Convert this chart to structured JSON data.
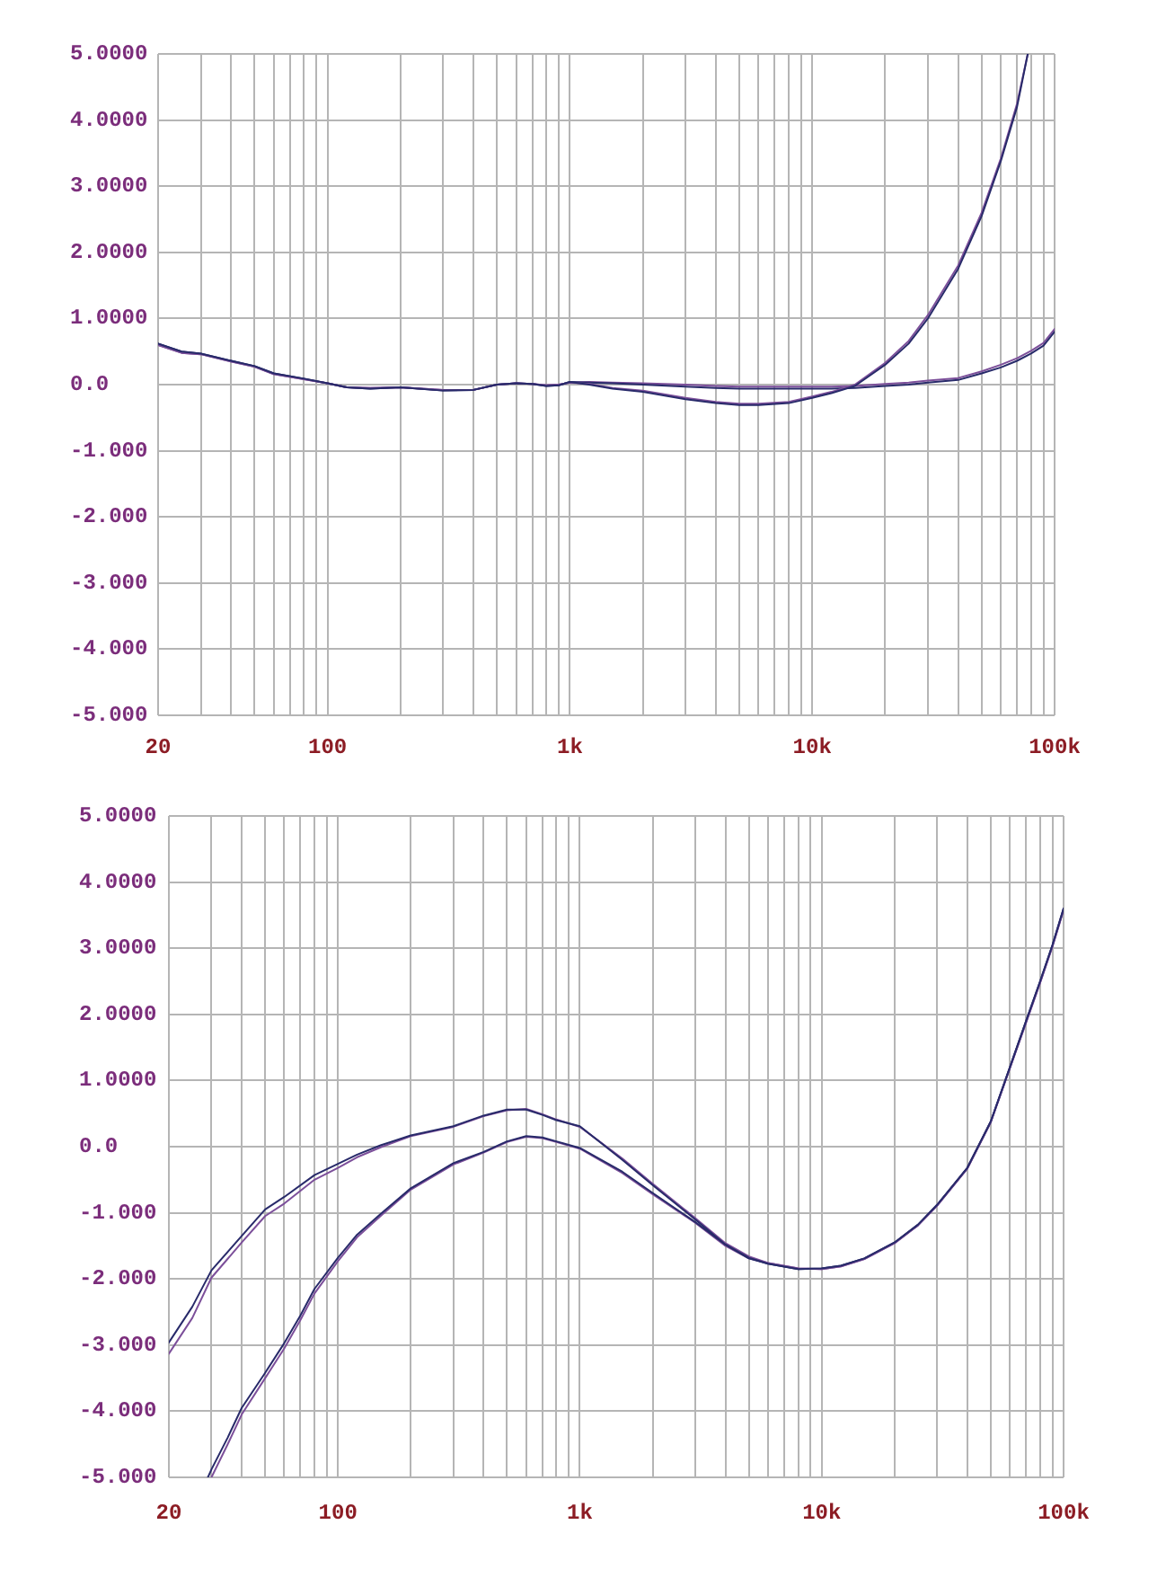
{
  "chart_data": [
    {
      "type": "line",
      "log": "x",
      "grid": true,
      "xlim": [
        20,
        100000
      ],
      "ylim": [
        -5,
        5
      ],
      "xticks": [
        {
          "value": 20,
          "label": "20"
        },
        {
          "value": 30,
          "label": null
        },
        {
          "value": 40,
          "label": null
        },
        {
          "value": 50,
          "label": null
        },
        {
          "value": 60,
          "label": null
        },
        {
          "value": 70,
          "label": null
        },
        {
          "value": 80,
          "label": null
        },
        {
          "value": 90,
          "label": null
        },
        {
          "value": 100,
          "label": "100"
        },
        {
          "value": 200,
          "label": null
        },
        {
          "value": 300,
          "label": null
        },
        {
          "value": 400,
          "label": null
        },
        {
          "value": 500,
          "label": null
        },
        {
          "value": 600,
          "label": null
        },
        {
          "value": 700,
          "label": null
        },
        {
          "value": 800,
          "label": null
        },
        {
          "value": 900,
          "label": null
        },
        {
          "value": 1000,
          "label": "1k"
        },
        {
          "value": 2000,
          "label": null
        },
        {
          "value": 3000,
          "label": null
        },
        {
          "value": 4000,
          "label": null
        },
        {
          "value": 5000,
          "label": null
        },
        {
          "value": 6000,
          "label": null
        },
        {
          "value": 7000,
          "label": null
        },
        {
          "value": 8000,
          "label": null
        },
        {
          "value": 9000,
          "label": null
        },
        {
          "value": 10000,
          "label": "10k"
        },
        {
          "value": 20000,
          "label": null
        },
        {
          "value": 30000,
          "label": null
        },
        {
          "value": 40000,
          "label": null
        },
        {
          "value": 50000,
          "label": null
        },
        {
          "value": 60000,
          "label": null
        },
        {
          "value": 70000,
          "label": null
        },
        {
          "value": 80000,
          "label": null
        },
        {
          "value": 90000,
          "label": null
        },
        {
          "value": 100000,
          "label": "100k"
        }
      ],
      "yticks": [
        {
          "value": -5,
          "label": "-5.000"
        },
        {
          "value": -4,
          "label": "-4.000"
        },
        {
          "value": -3,
          "label": "-3.000"
        },
        {
          "value": -2,
          "label": "-2.000"
        },
        {
          "value": -1,
          "label": "-1.000"
        },
        {
          "value": 0,
          "label": "0.0"
        },
        {
          "value": 1,
          "label": "1.0000"
        },
        {
          "value": 2,
          "label": "2.0000"
        },
        {
          "value": 3,
          "label": "3.0000"
        },
        {
          "value": 4,
          "label": "4.0000"
        },
        {
          "value": 5,
          "label": "5.0000"
        }
      ],
      "series": [
        {
          "color": "#282a6a",
          "x": [
            20,
            25,
            30,
            40,
            50,
            60,
            80,
            100,
            120,
            150,
            200,
            300,
            400,
            500,
            600,
            700,
            800,
            900,
            1000,
            1200,
            1500,
            2000,
            3000,
            4000,
            5000,
            6000,
            8000,
            10000,
            12000,
            15000,
            20000,
            25000,
            30000,
            40000,
            50000,
            60000,
            70000,
            77500
          ],
          "values": [
            0.62,
            0.5,
            0.47,
            0.36,
            0.28,
            0.17,
            0.09,
            0.02,
            -0.04,
            -0.06,
            -0.04,
            -0.09,
            -0.08,
            0.0,
            0.02,
            0.01,
            -0.02,
            -0.01,
            0.04,
            0.0,
            -0.06,
            -0.11,
            -0.22,
            -0.28,
            -0.31,
            -0.31,
            -0.28,
            -0.2,
            -0.13,
            -0.02,
            0.3,
            0.62,
            1.0,
            1.75,
            2.55,
            3.38,
            4.2,
            5.0
          ]
        },
        {
          "color": "#7c4f9a",
          "x": [
            20,
            25,
            30,
            40,
            50,
            60,
            80,
            100,
            120,
            150,
            200,
            300,
            400,
            500,
            600,
            700,
            800,
            900,
            1000,
            1200,
            1500,
            2000,
            3000,
            4000,
            5000,
            6000,
            8000,
            10000,
            12000,
            15000,
            20000,
            25000,
            30000,
            40000,
            50000,
            60000,
            70000,
            77500
          ],
          "values": [
            0.6,
            0.48,
            0.46,
            0.35,
            0.27,
            0.16,
            0.08,
            0.02,
            -0.04,
            -0.05,
            -0.04,
            -0.08,
            -0.08,
            0.0,
            0.02,
            0.01,
            -0.01,
            0.0,
            0.03,
            0.01,
            -0.05,
            -0.09,
            -0.2,
            -0.26,
            -0.29,
            -0.29,
            -0.26,
            -0.18,
            -0.11,
            0.0,
            0.33,
            0.66,
            1.05,
            1.8,
            2.6,
            3.42,
            4.25,
            5.0
          ]
        },
        {
          "color": "#282a6a",
          "x": [
            20,
            25,
            30,
            40,
            50,
            60,
            80,
            100,
            120,
            150,
            200,
            300,
            400,
            500,
            600,
            700,
            800,
            900,
            1000,
            1200,
            1500,
            2000,
            3000,
            4000,
            5000,
            6000,
            8000,
            10000,
            12000,
            15000,
            20000,
            25000,
            30000,
            40000,
            50000,
            60000,
            70000,
            80000,
            90000,
            100000
          ],
          "values": [
            0.62,
            0.5,
            0.47,
            0.36,
            0.28,
            0.17,
            0.09,
            0.02,
            -0.04,
            -0.06,
            -0.04,
            -0.09,
            -0.08,
            0.0,
            0.02,
            0.01,
            -0.02,
            -0.01,
            0.04,
            0.03,
            0.02,
            0.0,
            -0.03,
            -0.05,
            -0.06,
            -0.06,
            -0.06,
            -0.06,
            -0.06,
            -0.05,
            -0.02,
            0.0,
            0.03,
            0.07,
            0.17,
            0.26,
            0.36,
            0.47,
            0.59,
            0.8
          ]
        },
        {
          "color": "#7c4f9a",
          "x": [
            20,
            25,
            30,
            40,
            50,
            60,
            80,
            100,
            120,
            150,
            200,
            300,
            400,
            500,
            600,
            700,
            800,
            900,
            1000,
            1200,
            1500,
            2000,
            3000,
            4000,
            5000,
            6000,
            8000,
            10000,
            12000,
            15000,
            20000,
            25000,
            30000,
            40000,
            50000,
            60000,
            70000,
            80000,
            90000,
            100000
          ],
          "values": [
            0.6,
            0.48,
            0.46,
            0.35,
            0.27,
            0.16,
            0.08,
            0.02,
            -0.04,
            -0.05,
            -0.04,
            -0.08,
            -0.08,
            0.0,
            0.02,
            0.01,
            -0.01,
            0.0,
            0.03,
            0.04,
            0.03,
            0.02,
            0.0,
            -0.02,
            -0.03,
            -0.03,
            -0.03,
            -0.03,
            -0.03,
            -0.02,
            0.01,
            0.03,
            0.06,
            0.1,
            0.2,
            0.3,
            0.4,
            0.51,
            0.63,
            0.84
          ]
        }
      ]
    },
    {
      "type": "line",
      "log": "x",
      "grid": true,
      "xlim": [
        20,
        100000
      ],
      "ylim": [
        -5,
        5
      ],
      "xticks": [
        {
          "value": 20,
          "label": "20"
        },
        {
          "value": 30,
          "label": null
        },
        {
          "value": 40,
          "label": null
        },
        {
          "value": 50,
          "label": null
        },
        {
          "value": 60,
          "label": null
        },
        {
          "value": 70,
          "label": null
        },
        {
          "value": 80,
          "label": null
        },
        {
          "value": 90,
          "label": null
        },
        {
          "value": 100,
          "label": "100"
        },
        {
          "value": 200,
          "label": null
        },
        {
          "value": 300,
          "label": null
        },
        {
          "value": 400,
          "label": null
        },
        {
          "value": 500,
          "label": null
        },
        {
          "value": 600,
          "label": null
        },
        {
          "value": 700,
          "label": null
        },
        {
          "value": 800,
          "label": null
        },
        {
          "value": 900,
          "label": null
        },
        {
          "value": 1000,
          "label": "1k"
        },
        {
          "value": 2000,
          "label": null
        },
        {
          "value": 3000,
          "label": null
        },
        {
          "value": 4000,
          "label": null
        },
        {
          "value": 5000,
          "label": null
        },
        {
          "value": 6000,
          "label": null
        },
        {
          "value": 7000,
          "label": null
        },
        {
          "value": 8000,
          "label": null
        },
        {
          "value": 9000,
          "label": null
        },
        {
          "value": 10000,
          "label": "10k"
        },
        {
          "value": 20000,
          "label": null
        },
        {
          "value": 30000,
          "label": null
        },
        {
          "value": 40000,
          "label": null
        },
        {
          "value": 50000,
          "label": null
        },
        {
          "value": 60000,
          "label": null
        },
        {
          "value": 70000,
          "label": null
        },
        {
          "value": 80000,
          "label": null
        },
        {
          "value": 90000,
          "label": null
        },
        {
          "value": 100000,
          "label": "100k"
        }
      ],
      "yticks": [
        {
          "value": -5,
          "label": "-5.000"
        },
        {
          "value": -4,
          "label": "-4.000"
        },
        {
          "value": -3,
          "label": "-3.000"
        },
        {
          "value": -2,
          "label": "-2.000"
        },
        {
          "value": -1,
          "label": "-1.000"
        },
        {
          "value": 0,
          "label": "0.0"
        },
        {
          "value": 1,
          "label": "1.0000"
        },
        {
          "value": 2,
          "label": "2.0000"
        },
        {
          "value": 3,
          "label": "3.0000"
        },
        {
          "value": 4,
          "label": "4.0000"
        },
        {
          "value": 5,
          "label": "5.0000"
        }
      ],
      "series": [
        {
          "color": "#282a6a",
          "x": [
            20,
            25,
            30,
            40,
            50,
            60,
            80,
            100,
            120,
            150,
            200,
            300,
            400,
            500,
            600,
            700,
            800,
            1000,
            1500,
            2000,
            3000,
            4000,
            5000,
            6000,
            8000,
            10000,
            12000,
            15000,
            20000,
            25000,
            30000,
            40000,
            50000,
            60000,
            70000,
            80000,
            90000,
            100000
          ],
          "values": [
            -2.96,
            -2.42,
            -1.87,
            -1.35,
            -0.95,
            -0.76,
            -0.43,
            -0.26,
            -0.12,
            0.02,
            0.17,
            0.31,
            0.47,
            0.56,
            0.56,
            0.48,
            0.4,
            0.31,
            -0.2,
            -0.58,
            -1.1,
            -1.48,
            -1.68,
            -1.77,
            -1.85,
            -1.84,
            -1.8,
            -1.69,
            -1.45,
            -1.18,
            -0.88,
            -0.32,
            0.38,
            1.2,
            1.9,
            2.5,
            3.05,
            3.6
          ]
        },
        {
          "color": "#7c4f9a",
          "x": [
            20,
            25,
            30,
            40,
            50,
            60,
            80,
            100,
            120,
            150,
            200,
            300,
            400,
            500,
            600,
            700,
            800,
            1000,
            1500,
            2000,
            3000,
            4000,
            5000,
            6000,
            8000,
            10000,
            12000,
            15000,
            20000,
            25000,
            30000,
            40000,
            50000,
            60000,
            70000,
            80000,
            90000,
            100000
          ],
          "values": [
            -3.13,
            -2.59,
            -1.98,
            -1.45,
            -1.05,
            -0.86,
            -0.5,
            -0.32,
            -0.16,
            -0.01,
            0.16,
            0.3,
            0.46,
            0.55,
            0.57,
            0.49,
            0.41,
            0.3,
            -0.18,
            -0.56,
            -1.08,
            -1.46,
            -1.66,
            -1.76,
            -1.84,
            -1.85,
            -1.81,
            -1.7,
            -1.46,
            -1.19,
            -0.89,
            -0.33,
            0.37,
            1.19,
            1.88,
            2.48,
            3.03,
            3.58
          ]
        },
        {
          "color": "#282a6a",
          "x": [
            29,
            30,
            35,
            40,
            50,
            60,
            70,
            80,
            100,
            120,
            150,
            200,
            300,
            400,
            500,
            600,
            700,
            800,
            1000,
            1500,
            2000,
            3000,
            4000,
            5000,
            6000,
            8000,
            10000,
            12000,
            15000,
            20000,
            25000,
            30000,
            40000,
            50000,
            60000,
            70000,
            80000,
            90000,
            100000
          ],
          "values": [
            -5.0,
            -4.88,
            -4.4,
            -3.95,
            -3.42,
            -2.97,
            -2.55,
            -2.15,
            -1.68,
            -1.33,
            -1.02,
            -0.63,
            -0.25,
            -0.08,
            0.08,
            0.16,
            0.14,
            0.08,
            -0.02,
            -0.38,
            -0.7,
            -1.14,
            -1.48,
            -1.69,
            -1.77,
            -1.85,
            -1.84,
            -1.8,
            -1.69,
            -1.45,
            -1.18,
            -0.88,
            -0.32,
            0.38,
            1.2,
            1.9,
            2.5,
            3.05,
            3.6
          ]
        },
        {
          "color": "#7c4f9a",
          "x": [
            30,
            35,
            40,
            50,
            60,
            70,
            80,
            100,
            120,
            150,
            200,
            300,
            400,
            500,
            600,
            700,
            800,
            1000,
            1500,
            2000,
            3000,
            4000,
            5000,
            6000,
            8000,
            10000,
            12000,
            15000,
            20000,
            25000,
            30000,
            40000,
            50000,
            60000,
            70000,
            80000,
            90000,
            100000
          ],
          "values": [
            -5.0,
            -4.5,
            -4.05,
            -3.5,
            -3.05,
            -2.62,
            -2.22,
            -1.73,
            -1.37,
            -1.05,
            -0.65,
            -0.27,
            -0.09,
            0.07,
            0.15,
            0.13,
            0.07,
            -0.03,
            -0.4,
            -0.72,
            -1.15,
            -1.5,
            -1.69,
            -1.76,
            -1.84,
            -1.85,
            -1.81,
            -1.7,
            -1.46,
            -1.19,
            -0.89,
            -0.33,
            0.37,
            1.19,
            1.88,
            2.48,
            3.03,
            3.58
          ]
        }
      ]
    }
  ]
}
